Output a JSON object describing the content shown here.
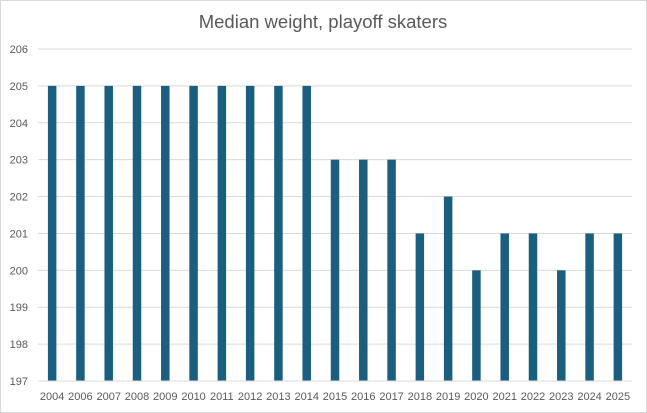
{
  "chart_data": {
    "type": "bar",
    "title": "Median weight, playoff skaters",
    "xlabel": "",
    "ylabel": "",
    "categories": [
      "2004",
      "2006",
      "2007",
      "2008",
      "2009",
      "2010",
      "2011",
      "2012",
      "2013",
      "2014",
      "2015",
      "2016",
      "2017",
      "2018",
      "2019",
      "2020",
      "2021",
      "2022",
      "2023",
      "2024",
      "2025"
    ],
    "series": [
      {
        "values": [
          205,
          205,
          205,
          205,
          205,
          205,
          205,
          205,
          205,
          205,
          203,
          203,
          203,
          201,
          202,
          200,
          201,
          201,
          200,
          201,
          201
        ],
        "color": "#1a5e80"
      }
    ],
    "ylim": [
      197,
      206
    ],
    "yticks": [
      "197",
      "198",
      "199",
      "200",
      "201",
      "202",
      "203",
      "204",
      "205",
      "206"
    ],
    "grid": true,
    "legend": "none"
  }
}
